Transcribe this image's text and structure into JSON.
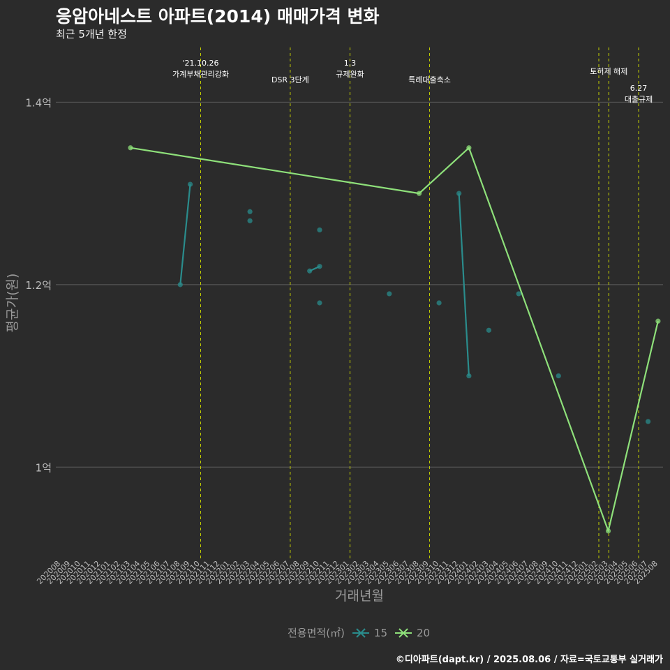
{
  "title": "응암아네스트 아파트(2014) 매매가격 변화",
  "subtitle": "최근 5개년 한정",
  "caption": "©디아파트(dapt.kr) / 2025.08.06 / 자료=국토교통부 실거래가",
  "colors": {
    "background": "#2b2b2b",
    "grid": "#5e5e5e",
    "event_line": "#c8d400",
    "series_15": "#2a8c8c",
    "series_20": "#8ee07a",
    "axis_text": "#bdbdbd",
    "axis_title": "#9a9a9a"
  },
  "legend": {
    "title": "전용면적(㎡)",
    "items": [
      {
        "label": "15",
        "color": "#2a8c8c"
      },
      {
        "label": "20",
        "color": "#8ee07a"
      }
    ]
  },
  "chart_data": {
    "type": "line",
    "title": "응암아네스트 아파트(2014) 매매가격 변화",
    "xlabel": "거래년월",
    "ylabel": "평균가(원)",
    "ylim": [
      0.9,
      1.46
    ],
    "y_ticks": [
      {
        "value": 1.0,
        "label": "1억"
      },
      {
        "value": 1.2,
        "label": "1.2억"
      },
      {
        "value": 1.4,
        "label": "1.4억"
      }
    ],
    "categories": [
      "202008",
      "202009",
      "202010",
      "202011",
      "202012",
      "202101",
      "202102",
      "202103",
      "202104",
      "202105",
      "202106",
      "202107",
      "202108",
      "202109",
      "202110",
      "202111",
      "202112",
      "202201",
      "202202",
      "202203",
      "202204",
      "202205",
      "202206",
      "202207",
      "202208",
      "202209",
      "202210",
      "202211",
      "202212",
      "202301",
      "202302",
      "202303",
      "202304",
      "202305",
      "202306",
      "202307",
      "202308",
      "202309",
      "202310",
      "202311",
      "202312",
      "202401",
      "202402",
      "202403",
      "202404",
      "202405",
      "202406",
      "202407",
      "202408",
      "202409",
      "202410",
      "202411",
      "202412",
      "202501",
      "202502",
      "202503",
      "202504",
      "202505",
      "202506",
      "202507",
      "202508"
    ],
    "series": [
      {
        "name": "15",
        "points": [
          {
            "x": "202108",
            "y": 1.2
          },
          {
            "x": "202109",
            "y": 1.31
          },
          {
            "x": "202203",
            "y": 1.28
          },
          {
            "x": "202203",
            "y": 1.27
          },
          {
            "x": "202209",
            "y": 1.215
          },
          {
            "x": "202210",
            "y": 1.22
          },
          {
            "x": "202210",
            "y": 1.26
          },
          {
            "x": "202210",
            "y": 1.18
          },
          {
            "x": "202305",
            "y": 1.19
          },
          {
            "x": "202310",
            "y": 1.18
          },
          {
            "x": "202312",
            "y": 1.3
          },
          {
            "x": "202401",
            "y": 1.1
          },
          {
            "x": "202403",
            "y": 1.15
          },
          {
            "x": "202406",
            "y": 1.19
          },
          {
            "x": "202410",
            "y": 1.1
          },
          {
            "x": "202507",
            "y": 1.05
          }
        ],
        "segments": [
          [
            {
              "x": "202108",
              "y": 1.2
            },
            {
              "x": "202109",
              "y": 1.31
            }
          ],
          [
            {
              "x": "202209",
              "y": 1.215
            },
            {
              "x": "202210",
              "y": 1.22
            }
          ],
          [
            {
              "x": "202312",
              "y": 1.3
            },
            {
              "x": "202401",
              "y": 1.1
            }
          ]
        ]
      },
      {
        "name": "20",
        "points": [
          {
            "x": "202103",
            "y": 1.35
          },
          {
            "x": "202308",
            "y": 1.3
          },
          {
            "x": "202401",
            "y": 1.35
          },
          {
            "x": "202503",
            "y": 0.93
          },
          {
            "x": "202508",
            "y": 1.16
          }
        ],
        "segments": [
          [
            {
              "x": "202103",
              "y": 1.35
            },
            {
              "x": "202308",
              "y": 1.3
            },
            {
              "x": "202401",
              "y": 1.35
            },
            {
              "x": "202503",
              "y": 0.93
            },
            {
              "x": "202508",
              "y": 1.16
            }
          ]
        ]
      }
    ],
    "events": [
      {
        "x": 14.05,
        "lines": [
          "'21.10.26",
          "가계부채관리강화"
        ],
        "row": 0
      },
      {
        "x": 23.05,
        "lines": [
          "DSR 3단계"
        ],
        "row": 2
      },
      {
        "x": 29.05,
        "lines": [
          "1.3",
          "규제완화"
        ],
        "row": 0
      },
      {
        "x": 37.05,
        "lines": [
          "특례대출축소"
        ],
        "row": 2
      },
      {
        "x": 54.05,
        "lines": [],
        "row": 0
      },
      {
        "x": 55.05,
        "lines": [
          "토허제 해제"
        ],
        "row": 1
      },
      {
        "x": 58.05,
        "lines": [
          "6.27",
          "대출규제"
        ],
        "row": 3
      }
    ]
  }
}
